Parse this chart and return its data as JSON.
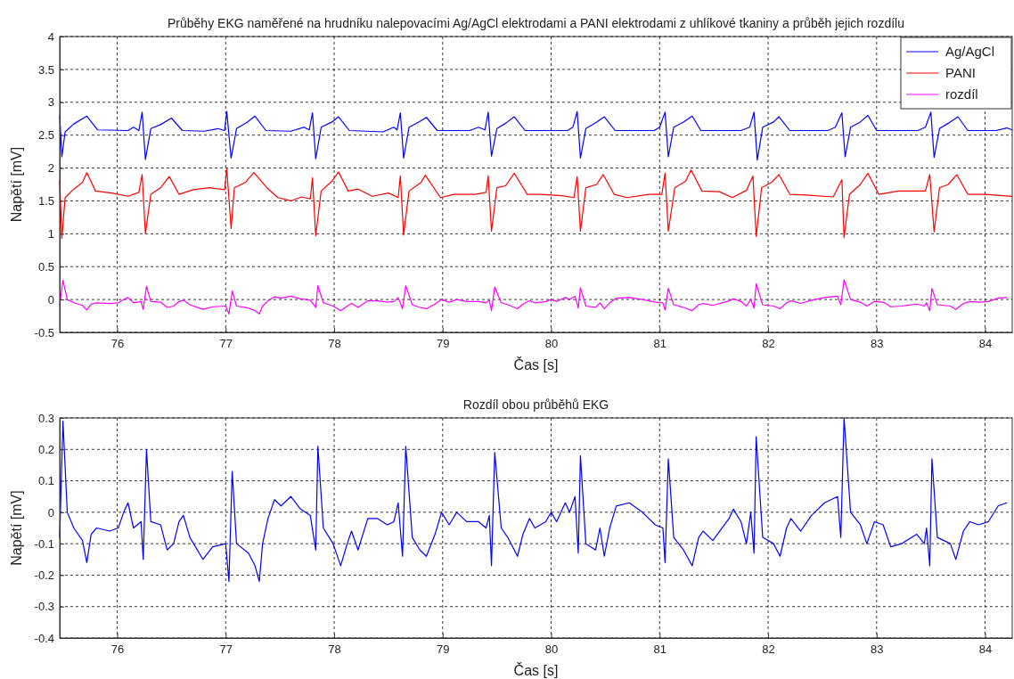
{
  "chart_data": [
    {
      "type": "line",
      "title": "Průběhy EKG naměřené na hrudníku nalepovacími Ag/AgCl elektrodami a PANI elektrodami z uhlíkové tkaniny a průběh jejich rozdílu",
      "xlabel": "Čas [s]",
      "ylabel": "Napětí [mV]",
      "xlim": [
        75.47,
        84.25
      ],
      "ylim": [
        -0.5,
        4
      ],
      "xticks": [
        76,
        77,
        78,
        79,
        80,
        81,
        82,
        83,
        84
      ],
      "yticks": [
        -0.5,
        0,
        0.5,
        1,
        1.5,
        2,
        2.5,
        3,
        3.5,
        4
      ],
      "grid": true,
      "legend": "top right",
      "series": [
        {
          "name": "Ag/AgCl",
          "color": "#0000ff",
          "x": [
            75.47,
            75.49,
            75.52,
            75.6,
            75.72,
            75.82,
            76.1,
            76.15,
            76.2,
            76.23,
            76.26,
            76.31,
            76.4,
            76.5,
            76.6,
            76.8,
            76.93,
            76.99,
            77.01,
            77.05,
            77.1,
            77.2,
            77.27,
            77.37,
            77.6,
            77.72,
            77.77,
            77.8,
            77.83,
            77.88,
            77.98,
            78.04,
            78.14,
            78.45,
            78.55,
            78.58,
            78.61,
            78.64,
            78.69,
            78.78,
            78.85,
            78.95,
            79.25,
            79.33,
            79.39,
            79.42,
            79.45,
            79.5,
            79.58,
            79.66,
            79.76,
            80.15,
            80.2,
            80.24,
            80.27,
            80.32,
            80.42,
            80.49,
            80.59,
            80.95,
            81.0,
            81.05,
            81.08,
            81.13,
            81.22,
            81.3,
            81.38,
            81.75,
            81.83,
            81.87,
            81.9,
            81.95,
            82.05,
            82.1,
            82.2,
            82.55,
            82.62,
            82.68,
            82.71,
            82.76,
            82.85,
            82.92,
            83.0,
            83.38,
            83.45,
            83.5,
            83.53,
            83.58,
            83.66,
            83.75,
            83.84,
            84.1,
            84.2,
            84.25
          ],
          "values": [
            2.8,
            2.17,
            2.55,
            2.67,
            2.79,
            2.58,
            2.57,
            2.62,
            2.57,
            2.85,
            2.13,
            2.6,
            2.66,
            2.76,
            2.57,
            2.56,
            2.6,
            2.57,
            2.86,
            2.15,
            2.6,
            2.7,
            2.79,
            2.57,
            2.56,
            2.62,
            2.58,
            2.84,
            2.14,
            2.62,
            2.7,
            2.78,
            2.57,
            2.55,
            2.62,
            2.58,
            2.84,
            2.15,
            2.62,
            2.7,
            2.77,
            2.57,
            2.57,
            2.62,
            2.58,
            2.85,
            2.18,
            2.6,
            2.68,
            2.78,
            2.57,
            2.57,
            2.62,
            2.86,
            2.15,
            2.6,
            2.7,
            2.78,
            2.57,
            2.57,
            2.62,
            2.85,
            2.17,
            2.62,
            2.7,
            2.79,
            2.57,
            2.57,
            2.62,
            2.85,
            2.12,
            2.62,
            2.7,
            2.78,
            2.57,
            2.57,
            2.62,
            2.84,
            2.17,
            2.62,
            2.7,
            2.8,
            2.57,
            2.57,
            2.62,
            2.85,
            2.16,
            2.6,
            2.68,
            2.78,
            2.57,
            2.57,
            2.61,
            2.58
          ]
        },
        {
          "name": "PANI",
          "color": "#ff0000",
          "x": [
            75.47,
            75.49,
            75.52,
            75.6,
            75.68,
            75.72,
            75.8,
            75.95,
            76.1,
            76.2,
            76.23,
            76.26,
            76.31,
            76.4,
            76.48,
            76.57,
            76.7,
            76.85,
            76.99,
            77.01,
            77.05,
            77.08,
            77.18,
            77.26,
            77.38,
            77.48,
            77.6,
            77.7,
            77.78,
            77.8,
            77.83,
            77.88,
            77.98,
            78.04,
            78.13,
            78.22,
            78.35,
            78.5,
            78.59,
            78.61,
            78.64,
            78.69,
            78.8,
            78.84,
            78.98,
            79.1,
            79.3,
            79.4,
            79.42,
            79.45,
            79.5,
            79.58,
            79.66,
            79.78,
            79.9,
            80.1,
            80.21,
            80.24,
            80.27,
            80.32,
            80.42,
            80.48,
            80.58,
            80.7,
            80.9,
            81.02,
            81.05,
            81.08,
            81.14,
            81.24,
            81.29,
            81.39,
            81.55,
            81.67,
            81.8,
            81.86,
            81.89,
            81.94,
            82.03,
            82.1,
            82.2,
            82.35,
            82.6,
            82.68,
            82.7,
            82.75,
            82.85,
            82.92,
            83.02,
            83.2,
            83.45,
            83.49,
            83.53,
            83.58,
            83.66,
            83.74,
            83.84,
            84.0,
            84.25
          ],
          "values": [
            1.8,
            0.93,
            1.55,
            1.68,
            1.78,
            1.93,
            1.65,
            1.62,
            1.57,
            1.63,
            1.9,
            1.0,
            1.6,
            1.7,
            1.87,
            1.6,
            1.67,
            1.7,
            1.67,
            1.99,
            1.08,
            1.7,
            1.78,
            1.93,
            1.7,
            1.55,
            1.5,
            1.56,
            1.53,
            1.85,
            0.97,
            1.65,
            1.8,
            1.94,
            1.65,
            1.68,
            1.57,
            1.62,
            1.55,
            1.88,
            0.98,
            1.65,
            1.78,
            1.89,
            1.55,
            1.6,
            1.6,
            1.63,
            1.88,
            1.04,
            1.7,
            1.73,
            1.92,
            1.6,
            1.6,
            1.58,
            1.55,
            1.87,
            1.04,
            1.7,
            1.75,
            1.9,
            1.6,
            1.55,
            1.6,
            1.6,
            1.92,
            1.04,
            1.7,
            1.8,
            1.97,
            1.65,
            1.64,
            1.55,
            1.66,
            1.88,
            0.96,
            1.7,
            1.78,
            1.9,
            1.6,
            1.59,
            1.56,
            1.82,
            0.94,
            1.6,
            1.75,
            1.92,
            1.6,
            1.65,
            1.65,
            1.9,
            1.03,
            1.7,
            1.75,
            1.9,
            1.6,
            1.6,
            1.57
          ]
        },
        {
          "name": "rozdíl",
          "color": "#ff00ff",
          "x": [
            75.47,
            75.5,
            75.54,
            75.6,
            75.68,
            75.72,
            75.76,
            75.81,
            75.93,
            76.01,
            76.06,
            76.1,
            76.15,
            76.22,
            76.24,
            76.27,
            76.31,
            76.4,
            76.46,
            76.52,
            76.57,
            76.61,
            76.67,
            76.79,
            76.88,
            77.0,
            77.03,
            77.06,
            77.1,
            77.21,
            77.27,
            77.31,
            77.34,
            77.39,
            77.45,
            77.51,
            77.6,
            77.69,
            77.78,
            77.83,
            77.85,
            77.9,
            77.99,
            78.06,
            78.12,
            78.16,
            78.22,
            78.31,
            78.4,
            78.49,
            78.55,
            78.59,
            78.63,
            78.66,
            78.72,
            78.79,
            78.85,
            78.93,
            78.99,
            79.06,
            79.13,
            79.22,
            79.33,
            79.4,
            79.43,
            79.45,
            79.48,
            79.54,
            79.6,
            79.69,
            79.74,
            79.8,
            79.85,
            79.95,
            80.0,
            80.05,
            80.13,
            80.17,
            80.22,
            80.25,
            80.27,
            80.32,
            80.41,
            80.45,
            80.49,
            80.54,
            80.6,
            80.72,
            80.84,
            80.96,
            81.03,
            81.05,
            81.08,
            81.13,
            81.22,
            81.3,
            81.36,
            81.4,
            81.49,
            81.64,
            81.68,
            81.75,
            81.8,
            81.84,
            81.87,
            81.89,
            81.95,
            82.05,
            82.11,
            82.17,
            82.21,
            82.3,
            82.4,
            82.52,
            82.64,
            82.67,
            82.7,
            82.76,
            82.85,
            82.91,
            82.98,
            83.06,
            83.13,
            83.23,
            83.37,
            83.44,
            83.46,
            83.49,
            83.51,
            83.56,
            83.68,
            83.73,
            83.8,
            83.86,
            83.94,
            84.03,
            84.12,
            84.2
          ],
          "values": [
            -0.08,
            0.29,
            0.0,
            -0.05,
            -0.09,
            -0.16,
            -0.07,
            -0.05,
            -0.06,
            -0.05,
            0.0,
            0.03,
            -0.05,
            -0.03,
            -0.15,
            0.2,
            -0.03,
            -0.04,
            -0.12,
            -0.1,
            -0.03,
            -0.01,
            -0.08,
            -0.15,
            -0.11,
            -0.1,
            -0.22,
            0.13,
            -0.1,
            -0.13,
            -0.17,
            -0.22,
            -0.1,
            -0.02,
            0.04,
            0.02,
            0.05,
            0.01,
            -0.01,
            -0.12,
            0.21,
            -0.05,
            -0.1,
            -0.17,
            -0.1,
            -0.06,
            -0.12,
            -0.02,
            -0.02,
            -0.04,
            -0.03,
            0.03,
            -0.14,
            0.21,
            -0.08,
            -0.12,
            -0.14,
            -0.07,
            0.0,
            -0.04,
            0.0,
            -0.03,
            -0.03,
            -0.05,
            -0.01,
            -0.17,
            0.19,
            -0.05,
            -0.08,
            -0.14,
            -0.07,
            -0.02,
            -0.05,
            -0.03,
            0.0,
            -0.03,
            0.03,
            0.0,
            0.05,
            -0.13,
            0.18,
            -0.1,
            -0.12,
            -0.05,
            -0.14,
            -0.05,
            0.02,
            0.03,
            0.0,
            -0.04,
            -0.05,
            -0.16,
            0.17,
            -0.08,
            -0.12,
            -0.17,
            -0.08,
            -0.06,
            -0.09,
            -0.02,
            0.01,
            -0.03,
            -0.1,
            0.0,
            -0.13,
            0.24,
            -0.08,
            -0.1,
            -0.14,
            -0.05,
            -0.02,
            -0.06,
            -0.01,
            0.03,
            0.05,
            -0.08,
            0.3,
            0.0,
            -0.04,
            -0.1,
            -0.03,
            -0.04,
            -0.11,
            -0.1,
            -0.07,
            -0.1,
            -0.05,
            -0.17,
            0.17,
            -0.08,
            -0.1,
            -0.15,
            -0.06,
            -0.03,
            -0.04,
            -0.03,
            0.02,
            0.03
          ]
        }
      ]
    },
    {
      "type": "line",
      "title": "Rozdíl obou průběhů EKG",
      "xlabel": "Čas [s]",
      "ylabel": "Napětí [mV]",
      "xlim": [
        75.47,
        84.25
      ],
      "ylim": [
        -0.4,
        0.3
      ],
      "xticks": [
        76,
        77,
        78,
        79,
        80,
        81,
        82,
        83,
        84
      ],
      "yticks": [
        -0.4,
        -0.3,
        -0.2,
        -0.1,
        0,
        0.1,
        0.2,
        0.3
      ],
      "grid": true,
      "series": [
        {
          "color": "#0000ff",
          "x": [
            75.47,
            75.5,
            75.54,
            75.6,
            75.68,
            75.72,
            75.76,
            75.81,
            75.93,
            76.01,
            76.06,
            76.1,
            76.15,
            76.22,
            76.24,
            76.27,
            76.31,
            76.4,
            76.46,
            76.52,
            76.57,
            76.61,
            76.67,
            76.79,
            76.88,
            77.0,
            77.03,
            77.06,
            77.1,
            77.21,
            77.27,
            77.31,
            77.34,
            77.39,
            77.45,
            77.51,
            77.6,
            77.69,
            77.78,
            77.83,
            77.85,
            77.9,
            77.99,
            78.06,
            78.12,
            78.16,
            78.22,
            78.31,
            78.4,
            78.49,
            78.55,
            78.59,
            78.63,
            78.66,
            78.72,
            78.79,
            78.85,
            78.93,
            78.99,
            79.06,
            79.13,
            79.22,
            79.33,
            79.4,
            79.43,
            79.45,
            79.48,
            79.54,
            79.6,
            79.69,
            79.74,
            79.8,
            79.85,
            79.95,
            80.0,
            80.05,
            80.13,
            80.17,
            80.22,
            80.25,
            80.27,
            80.32,
            80.41,
            80.45,
            80.49,
            80.54,
            80.6,
            80.72,
            80.84,
            80.96,
            81.03,
            81.05,
            81.08,
            81.13,
            81.22,
            81.3,
            81.36,
            81.4,
            81.49,
            81.64,
            81.68,
            81.75,
            81.8,
            81.84,
            81.87,
            81.89,
            81.95,
            82.05,
            82.11,
            82.17,
            82.21,
            82.3,
            82.4,
            82.52,
            82.64,
            82.67,
            82.7,
            82.76,
            82.85,
            82.91,
            82.98,
            83.06,
            83.13,
            83.23,
            83.37,
            83.44,
            83.46,
            83.49,
            83.51,
            83.56,
            83.68,
            83.73,
            83.8,
            83.86,
            83.94,
            84.03,
            84.12,
            84.2
          ],
          "values": [
            -0.08,
            0.29,
            0.0,
            -0.05,
            -0.09,
            -0.16,
            -0.07,
            -0.05,
            -0.06,
            -0.05,
            0.0,
            0.03,
            -0.05,
            -0.03,
            -0.15,
            0.2,
            -0.03,
            -0.04,
            -0.12,
            -0.1,
            -0.03,
            -0.01,
            -0.08,
            -0.15,
            -0.11,
            -0.1,
            -0.22,
            0.13,
            -0.1,
            -0.13,
            -0.17,
            -0.22,
            -0.1,
            -0.02,
            0.04,
            0.02,
            0.05,
            0.01,
            -0.01,
            -0.12,
            0.21,
            -0.05,
            -0.1,
            -0.17,
            -0.1,
            -0.06,
            -0.12,
            -0.02,
            -0.02,
            -0.04,
            -0.03,
            0.03,
            -0.14,
            0.21,
            -0.08,
            -0.12,
            -0.14,
            -0.07,
            0.0,
            -0.04,
            0.0,
            -0.03,
            -0.03,
            -0.05,
            -0.01,
            -0.17,
            0.19,
            -0.05,
            -0.08,
            -0.14,
            -0.07,
            -0.02,
            -0.05,
            -0.03,
            0.0,
            -0.03,
            0.03,
            0.0,
            0.05,
            -0.13,
            0.18,
            -0.1,
            -0.12,
            -0.05,
            -0.14,
            -0.05,
            0.02,
            0.03,
            0.0,
            -0.04,
            -0.05,
            -0.16,
            0.17,
            -0.08,
            -0.12,
            -0.17,
            -0.08,
            -0.06,
            -0.09,
            -0.02,
            0.01,
            -0.03,
            -0.1,
            0.0,
            -0.13,
            0.24,
            -0.08,
            -0.1,
            -0.14,
            -0.05,
            -0.02,
            -0.06,
            -0.01,
            0.03,
            0.05,
            -0.08,
            0.3,
            0.0,
            -0.04,
            -0.1,
            -0.03,
            -0.04,
            -0.11,
            -0.1,
            -0.07,
            -0.1,
            -0.05,
            -0.17,
            0.17,
            -0.08,
            -0.1,
            -0.15,
            -0.06,
            -0.03,
            -0.04,
            -0.03,
            0.02,
            0.03
          ]
        }
      ]
    }
  ]
}
